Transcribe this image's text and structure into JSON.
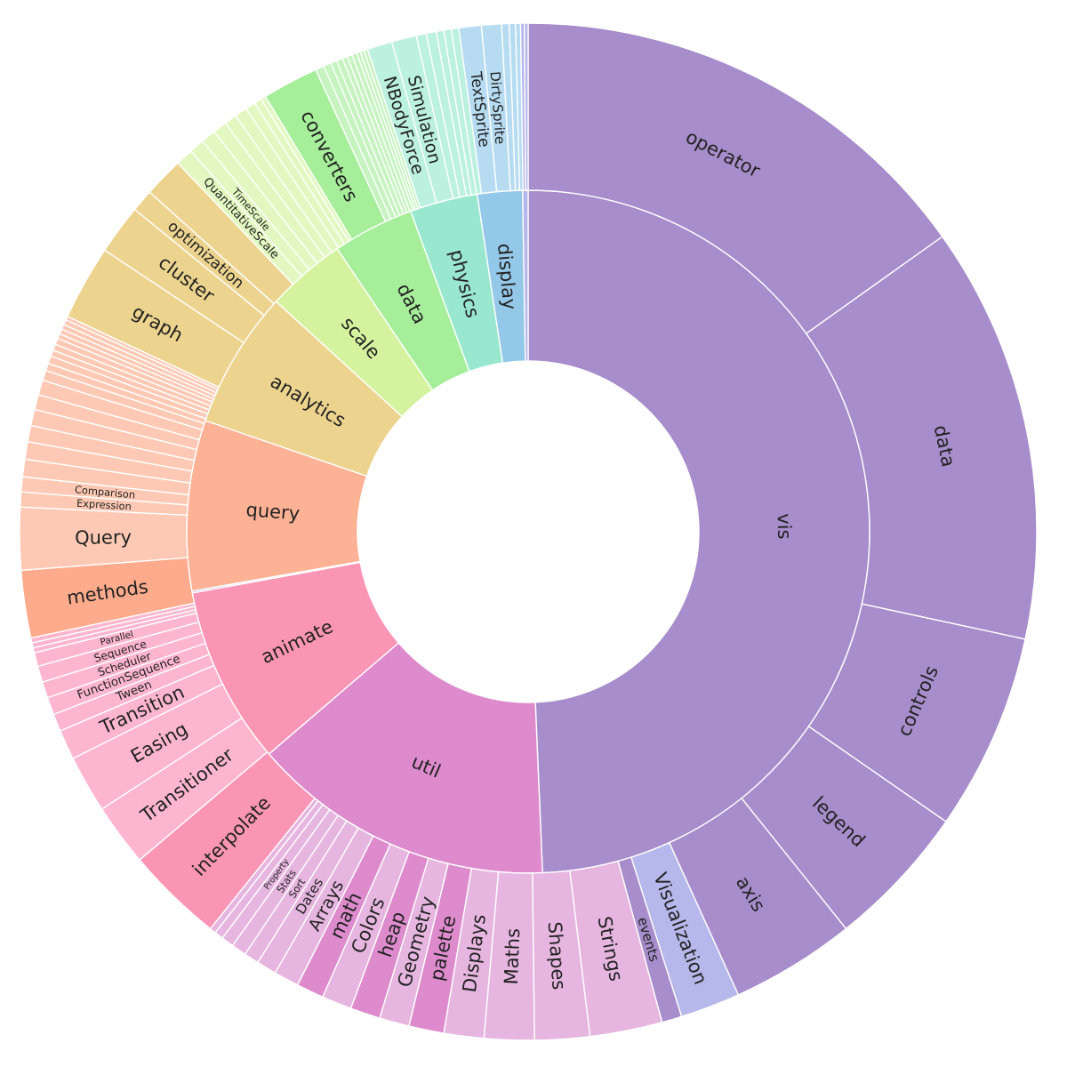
{
  "chart_data": {
    "type": "sunburst",
    "colors": {
      "vis": "#a78dcb",
      "vis_child": "#a78dcb",
      "util": "#dd8bcd",
      "util_child": "#e6b6e0",
      "util_child_dark": "#dd8bcd",
      "animate": "#fb95b6",
      "animate_child": "#fdb6cd",
      "interpolate": "#fb95b6",
      "methods": "#fdab8c",
      "query": "#fdb195",
      "query_child": "#fdc9b4",
      "analytics": "#ecd38e",
      "analytics_child": "#ecd38e",
      "scale": "#d5f39e",
      "scale_child": "#e3f8c1",
      "data": "#a6ee9a",
      "data_child": "#c6f3c0",
      "converters": "#a6ee9a",
      "physics": "#9ae7cf",
      "physics_child": "#bcf0df",
      "display": "#94c8e8",
      "display_child": "#b7dcf1",
      "flex": "#b6b7ea"
    },
    "inner": [
      {
        "label": "vis",
        "value": 5690,
        "color": "vis"
      },
      {
        "label": "util",
        "value": 1660,
        "color": "util"
      },
      {
        "label": "animate",
        "value": 970,
        "color": "animate"
      },
      {
        "label": "",
        "value": 10,
        "color": "flex"
      },
      {
        "label": "query",
        "value": 930,
        "color": "query"
      },
      {
        "label": "analytics",
        "value": 750,
        "color": "analytics"
      },
      {
        "label": "scale",
        "value": 435,
        "color": "scale"
      },
      {
        "label": "data",
        "value": 445,
        "color": "data"
      },
      {
        "label": "physics",
        "value": 370,
        "color": "physics"
      },
      {
        "label": "display",
        "value": 245,
        "color": "display"
      },
      {
        "label": "",
        "value": 30,
        "color": "flex"
      }
    ],
    "outer": [
      {
        "label": "operator",
        "value": 1910,
        "color": "vis_child"
      },
      {
        "label": "data",
        "value": 1670,
        "color": "vis_child"
      },
      {
        "label": "controls",
        "value": 790,
        "color": "vis_child"
      },
      {
        "label": "legend",
        "value": 580,
        "color": "vis_child"
      },
      {
        "label": "axis",
        "value": 500,
        "color": "vis_child"
      },
      {
        "label": "Visualization",
        "value": 240,
        "color": "flex"
      },
      {
        "label": "events",
        "value": 80,
        "color": "vis_child"
      },
      {
        "label": "Strings",
        "value": 290,
        "color": "util_child"
      },
      {
        "label": "Shapes",
        "value": 220,
        "color": "util_child"
      },
      {
        "label": "Maths",
        "value": 200,
        "color": "util_child"
      },
      {
        "label": "Displays",
        "value": 160,
        "color": "util_child"
      },
      {
        "label": "palette",
        "value": 140,
        "color": "util_child_dark"
      },
      {
        "label": "Geometry",
        "value": 120,
        "color": "util_child"
      },
      {
        "label": "heap",
        "value": 120,
        "color": "util_child_dark"
      },
      {
        "label": "Colors",
        "value": 120,
        "color": "util_child"
      },
      {
        "label": "math",
        "value": 110,
        "color": "util_child_dark"
      },
      {
        "label": "Arrays",
        "value": 100,
        "color": "util_child"
      },
      {
        "label": "Dates",
        "value": 80,
        "color": "util_child"
      },
      {
        "label": "Sort",
        "value": 60,
        "color": "util_child"
      },
      {
        "label": "Stats",
        "value": 60,
        "color": "util_child"
      },
      {
        "label": "Property",
        "value": 50,
        "color": "util_child"
      },
      {
        "label": "",
        "value": 35,
        "color": "util_child"
      },
      {
        "label": "",
        "value": 25,
        "color": "util_child"
      },
      {
        "label": "interpolate",
        "value": 390,
        "color": "interpolate"
      },
      {
        "label": "Transitioner",
        "value": 250,
        "color": "animate_child"
      },
      {
        "label": "Easing",
        "value": 230,
        "color": "animate_child"
      },
      {
        "label": "Transition",
        "value": 120,
        "color": "animate_child"
      },
      {
        "label": "Tween",
        "value": 70,
        "color": "animate_child"
      },
      {
        "label": "FunctionSequence",
        "value": 70,
        "color": "animate_child"
      },
      {
        "label": "Scheduler",
        "value": 65,
        "color": "animate_child"
      },
      {
        "label": "Sequence",
        "value": 65,
        "color": "animate_child"
      },
      {
        "label": "Parallel",
        "value": 55,
        "color": "animate_child"
      },
      {
        "label": "",
        "value": 20,
        "color": "animate_child"
      },
      {
        "label": "",
        "value": 20,
        "color": "animate_child"
      },
      {
        "label": "",
        "value": 20,
        "color": "animate_child"
      },
      {
        "label": "methods",
        "value": 270,
        "color": "methods"
      },
      {
        "label": "Query",
        "value": 250,
        "color": "query_child"
      },
      {
        "label": "Expression",
        "value": 60,
        "color": "query_child"
      },
      {
        "label": "Comparison",
        "value": 60,
        "color": "query_child"
      },
      {
        "label": "",
        "value": 70,
        "color": "query_child"
      },
      {
        "label": "",
        "value": 70,
        "color": "query_child"
      },
      {
        "label": "",
        "value": 65,
        "color": "query_child"
      },
      {
        "label": "",
        "value": 65,
        "color": "query_child"
      },
      {
        "label": "",
        "value": 60,
        "color": "query_child"
      },
      {
        "label": "",
        "value": 60,
        "color": "query_child"
      },
      {
        "label": "",
        "value": 40,
        "color": "query_child"
      },
      {
        "label": "",
        "value": 30,
        "color": "query_child"
      },
      {
        "label": "",
        "value": 30,
        "color": "query_child"
      },
      {
        "label": "",
        "value": 25,
        "color": "query_child"
      },
      {
        "label": "",
        "value": 25,
        "color": "query_child"
      },
      {
        "label": "",
        "value": 25,
        "color": "query_child"
      },
      {
        "label": "",
        "value": 20,
        "color": "query_child"
      },
      {
        "label": "",
        "value": 20,
        "color": "query_child"
      },
      {
        "label": "",
        "value": 20,
        "color": "query_child"
      },
      {
        "label": "",
        "value": 20,
        "color": "query_child"
      },
      {
        "label": "",
        "value": 15,
        "color": "query_child"
      },
      {
        "label": "graph",
        "value": 300,
        "color": "analytics_child"
      },
      {
        "label": "cluster",
        "value": 200,
        "color": "analytics_child"
      },
      {
        "label": "optimization",
        "value": 90,
        "color": "analytics_child"
      },
      {
        "label": "",
        "value": 160,
        "color": "analytics_child"
      },
      {
        "label": "QuantitativeScale",
        "value": 70,
        "color": "scale_child"
      },
      {
        "label": "TimeScale",
        "value": 60,
        "color": "scale_child"
      },
      {
        "label": "",
        "value": 60,
        "color": "scale_child"
      },
      {
        "label": "",
        "value": 55,
        "color": "scale_child"
      },
      {
        "label": "",
        "value": 50,
        "color": "scale_child"
      },
      {
        "label": "",
        "value": 50,
        "color": "scale_child"
      },
      {
        "label": "",
        "value": 40,
        "color": "scale_child"
      },
      {
        "label": "",
        "value": 30,
        "color": "scale_child"
      },
      {
        "label": "",
        "value": 20,
        "color": "scale_child"
      },
      {
        "label": "converters",
        "value": 225,
        "color": "converters"
      },
      {
        "label": "",
        "value": 35,
        "color": "data_child"
      },
      {
        "label": "",
        "value": 30,
        "color": "data_child"
      },
      {
        "label": "",
        "value": 25,
        "color": "data_child"
      },
      {
        "label": "",
        "value": 25,
        "color": "data_child"
      },
      {
        "label": "",
        "value": 20,
        "color": "data_child"
      },
      {
        "label": "",
        "value": 20,
        "color": "data_child"
      },
      {
        "label": "",
        "value": 20,
        "color": "data_child"
      },
      {
        "label": "",
        "value": 15,
        "color": "data_child"
      },
      {
        "label": "",
        "value": 15,
        "color": "data_child"
      },
      {
        "label": "",
        "value": 15,
        "color": "data_child"
      },
      {
        "label": "NBodyForce",
        "value": 100,
        "color": "physics_child"
      },
      {
        "label": "Simulation",
        "value": 100,
        "color": "physics_child"
      },
      {
        "label": "",
        "value": 40,
        "color": "physics_child"
      },
      {
        "label": "",
        "value": 40,
        "color": "physics_child"
      },
      {
        "label": "",
        "value": 30,
        "color": "physics_child"
      },
      {
        "label": "",
        "value": 30,
        "color": "physics_child"
      },
      {
        "label": "",
        "value": 30,
        "color": "physics_child"
      },
      {
        "label": "TextSprite",
        "value": 90,
        "color": "display_child"
      },
      {
        "label": "DirtySprite",
        "value": 80,
        "color": "display_child"
      },
      {
        "label": "",
        "value": 30,
        "color": "display_child"
      },
      {
        "label": "",
        "value": 25,
        "color": "display_child"
      },
      {
        "label": "",
        "value": 20,
        "color": "display_child"
      },
      {
        "label": "",
        "value": 15,
        "color": "flex"
      },
      {
        "label": "",
        "value": 15,
        "color": "flex"
      }
    ]
  }
}
